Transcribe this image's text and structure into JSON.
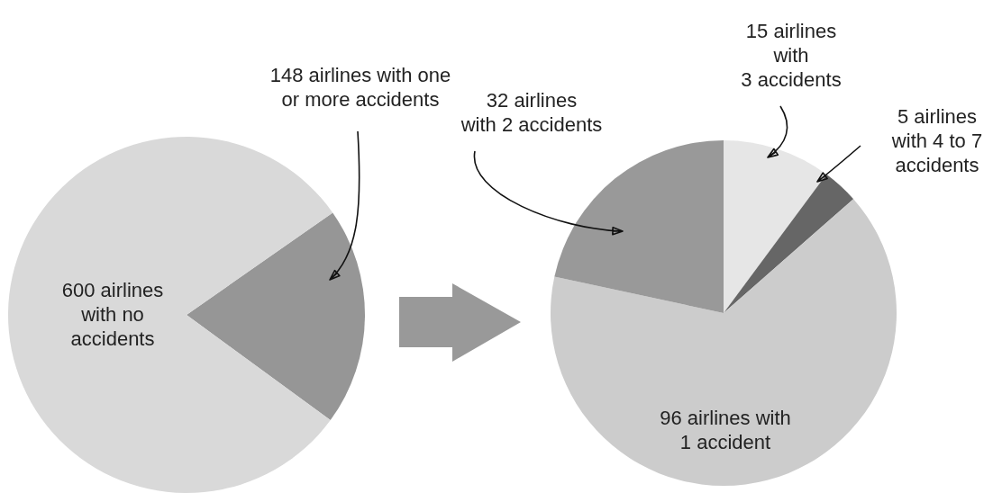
{
  "chart_data": [
    {
      "type": "pie",
      "categories": [
        "148 airlines with one\nor more accidents",
        "600 airlines\nwith no\naccidents"
      ],
      "values": [
        148,
        600
      ],
      "colors": [
        "#969696",
        "#d9d9d9"
      ]
    },
    {
      "type": "pie",
      "categories": [
        "15 airlines\nwith\n3 accidents",
        "5 airlines\nwith 4 to 7\naccidents",
        "96 airlines with\n1 accident",
        "32 airlines\nwith 2 accidents"
      ],
      "values": [
        15,
        5,
        96,
        32
      ],
      "colors": [
        "#e6e6e6",
        "#666666",
        "#cccccc",
        "#999999"
      ]
    }
  ]
}
